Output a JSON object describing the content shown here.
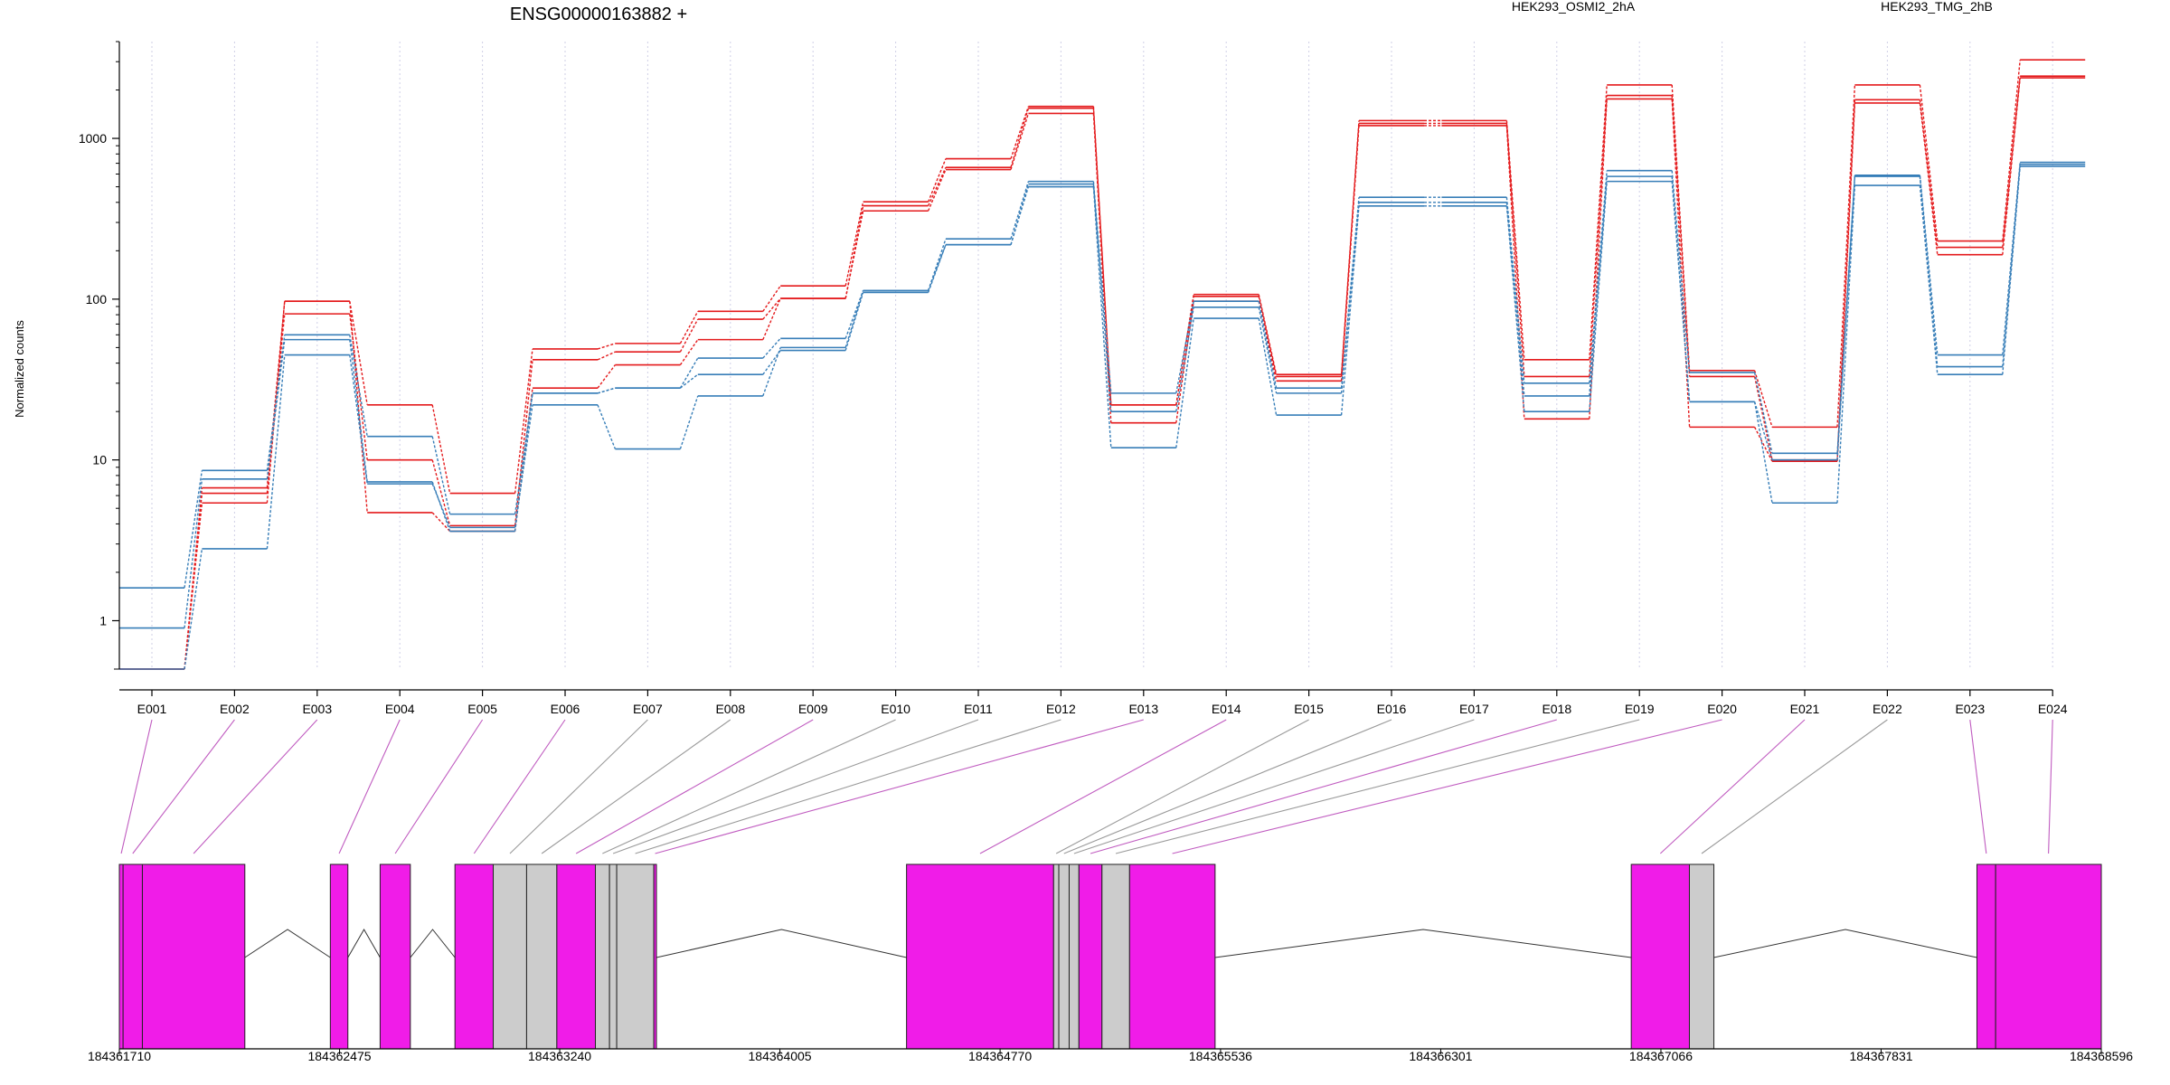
{
  "chart_data": {
    "type": "line",
    "title": "ENSG00000163882 +",
    "ylabel": "Normalized counts",
    "xlabel": "",
    "y_scale": "log",
    "ylim": [
      0.5,
      4000
    ],
    "y_ticks": [
      1,
      10,
      100,
      1000
    ],
    "y_tick_labels": [
      "1",
      "10",
      "100",
      "1000"
    ],
    "grid": "vertical dotted lines at exon bins",
    "legend_position": "top",
    "categories": [
      "E001",
      "E002",
      "E003",
      "E004",
      "E005",
      "E006",
      "E007",
      "E008",
      "E009",
      "E010",
      "E011",
      "E012",
      "E013",
      "E014",
      "E015",
      "E016",
      "E017",
      "E018",
      "E019",
      "E020",
      "E021",
      "E022",
      "E023",
      "E024"
    ],
    "series": [
      {
        "name": "HEK293_OSMI2_2hA",
        "color": "#e41a1c",
        "replicates": [
          [
            0.5,
            6.7,
            97,
            22,
            6.2,
            49,
            53,
            84,
            121,
            403,
            747,
            1580,
            22,
            107,
            34,
            1290,
            1290,
            42,
            2150,
            36,
            16,
            2150,
            230,
            3080
          ],
          [
            0.5,
            6.2,
            81,
            10,
            3.9,
            42,
            47,
            75,
            101,
            381,
            660,
            1540,
            22,
            104,
            33,
            1240,
            1240,
            33,
            1850,
            33,
            10,
            1740,
            210,
            2440
          ],
          [
            0.5,
            5.4,
            97,
            4.7,
            3.6,
            28,
            39,
            56,
            101,
            354,
            640,
            1430,
            17,
            97,
            31,
            1200,
            1200,
            18,
            1760,
            16,
            9.8,
            1660,
            189,
            2380
          ]
        ]
      },
      {
        "name": "HEK293_TMG_2hB",
        "color": "#377eb8",
        "replicates": [
          [
            1.6,
            8.6,
            60,
            14,
            4.6,
            26,
            28,
            43,
            57,
            113,
            237,
            540,
            26,
            97,
            28,
            430,
            430,
            30,
            630,
            35,
            11,
            590,
            45,
            710
          ],
          [
            0.9,
            7.6,
            56,
            7.3,
            3.6,
            26,
            28,
            34,
            48,
            110,
            218,
            520,
            20,
            89,
            26,
            400,
            400,
            25,
            580,
            23,
            10,
            580,
            38,
            690
          ],
          [
            0.5,
            2.8,
            45,
            7.1,
            3.8,
            22,
            11.7,
            25,
            50,
            113,
            218,
            500,
            11.9,
            76,
            19,
            380,
            380,
            20,
            540,
            23,
            5.4,
            510,
            34,
            670
          ]
        ]
      }
    ]
  },
  "gene_model": {
    "axis_labels": [
      "184361710",
      "184362475",
      "184363240",
      "184364005",
      "184364770",
      "184365536",
      "184366301",
      "184367066",
      "184367831",
      "184368596"
    ],
    "axis_values": [
      184361710,
      184362475,
      184363240,
      184364005,
      184364770,
      184365536,
      184366301,
      184367066,
      184367831,
      184368596
    ],
    "colors": {
      "highlight": "#f01ce8",
      "bin": "#cccccc",
      "link_highlight": "#c05cc0",
      "link_bin": "#9a9a9a",
      "intron": "#333333"
    },
    "exon_bins": [
      {
        "bin": "E001",
        "start": 184361710,
        "end": 184361723,
        "highlighted": true
      },
      {
        "bin": "E002",
        "start": 184361723,
        "end": 184361790,
        "highlighted": true
      },
      {
        "bin": "E003",
        "start": 184361790,
        "end": 184362146,
        "highlighted": true
      },
      {
        "bin": "E004",
        "start": 184362443,
        "end": 184362504,
        "highlighted": true
      },
      {
        "bin": "E005",
        "start": 184362616,
        "end": 184362721,
        "highlighted": true
      },
      {
        "bin": "E006",
        "start": 184362876,
        "end": 184363009,
        "highlighted": true
      },
      {
        "bin": "E007",
        "start": 184363009,
        "end": 184363125,
        "highlighted": false
      },
      {
        "bin": "E008",
        "start": 184363125,
        "end": 184363230,
        "highlighted": false
      },
      {
        "bin": "E009",
        "start": 184363230,
        "end": 184363364,
        "highlighted": true
      },
      {
        "bin": "E010",
        "start": 184363364,
        "end": 184363413,
        "highlighted": false
      },
      {
        "bin": "E011",
        "start": 184363413,
        "end": 184363438,
        "highlighted": false
      },
      {
        "bin": "E012",
        "start": 184363438,
        "end": 184363567,
        "highlighted": false
      },
      {
        "bin": "E013",
        "start": 184363567,
        "end": 184363576,
        "highlighted": true
      },
      {
        "bin": "E014",
        "start": 184364445,
        "end": 184364956,
        "highlighted": true
      },
      {
        "bin": "E015",
        "start": 184364956,
        "end": 184364974,
        "highlighted": false
      },
      {
        "bin": "E016",
        "start": 184364974,
        "end": 184365010,
        "highlighted": false
      },
      {
        "bin": "E017",
        "start": 184365010,
        "end": 184365044,
        "highlighted": false
      },
      {
        "bin": "E018",
        "start": 184365044,
        "end": 184365124,
        "highlighted": true
      },
      {
        "bin": "E019",
        "start": 184365124,
        "end": 184365220,
        "highlighted": false
      },
      {
        "bin": "E020",
        "start": 184365220,
        "end": 184365517,
        "highlighted": true
      },
      {
        "bin": "E021",
        "start": 184366963,
        "end": 184367165,
        "highlighted": true
      },
      {
        "bin": "E022",
        "start": 184367165,
        "end": 184367250,
        "highlighted": false
      },
      {
        "bin": "E023",
        "start": 184368164,
        "end": 184368229,
        "highlighted": true
      },
      {
        "bin": "E024",
        "start": 184368229,
        "end": 184368596,
        "highlighted": true
      }
    ]
  }
}
